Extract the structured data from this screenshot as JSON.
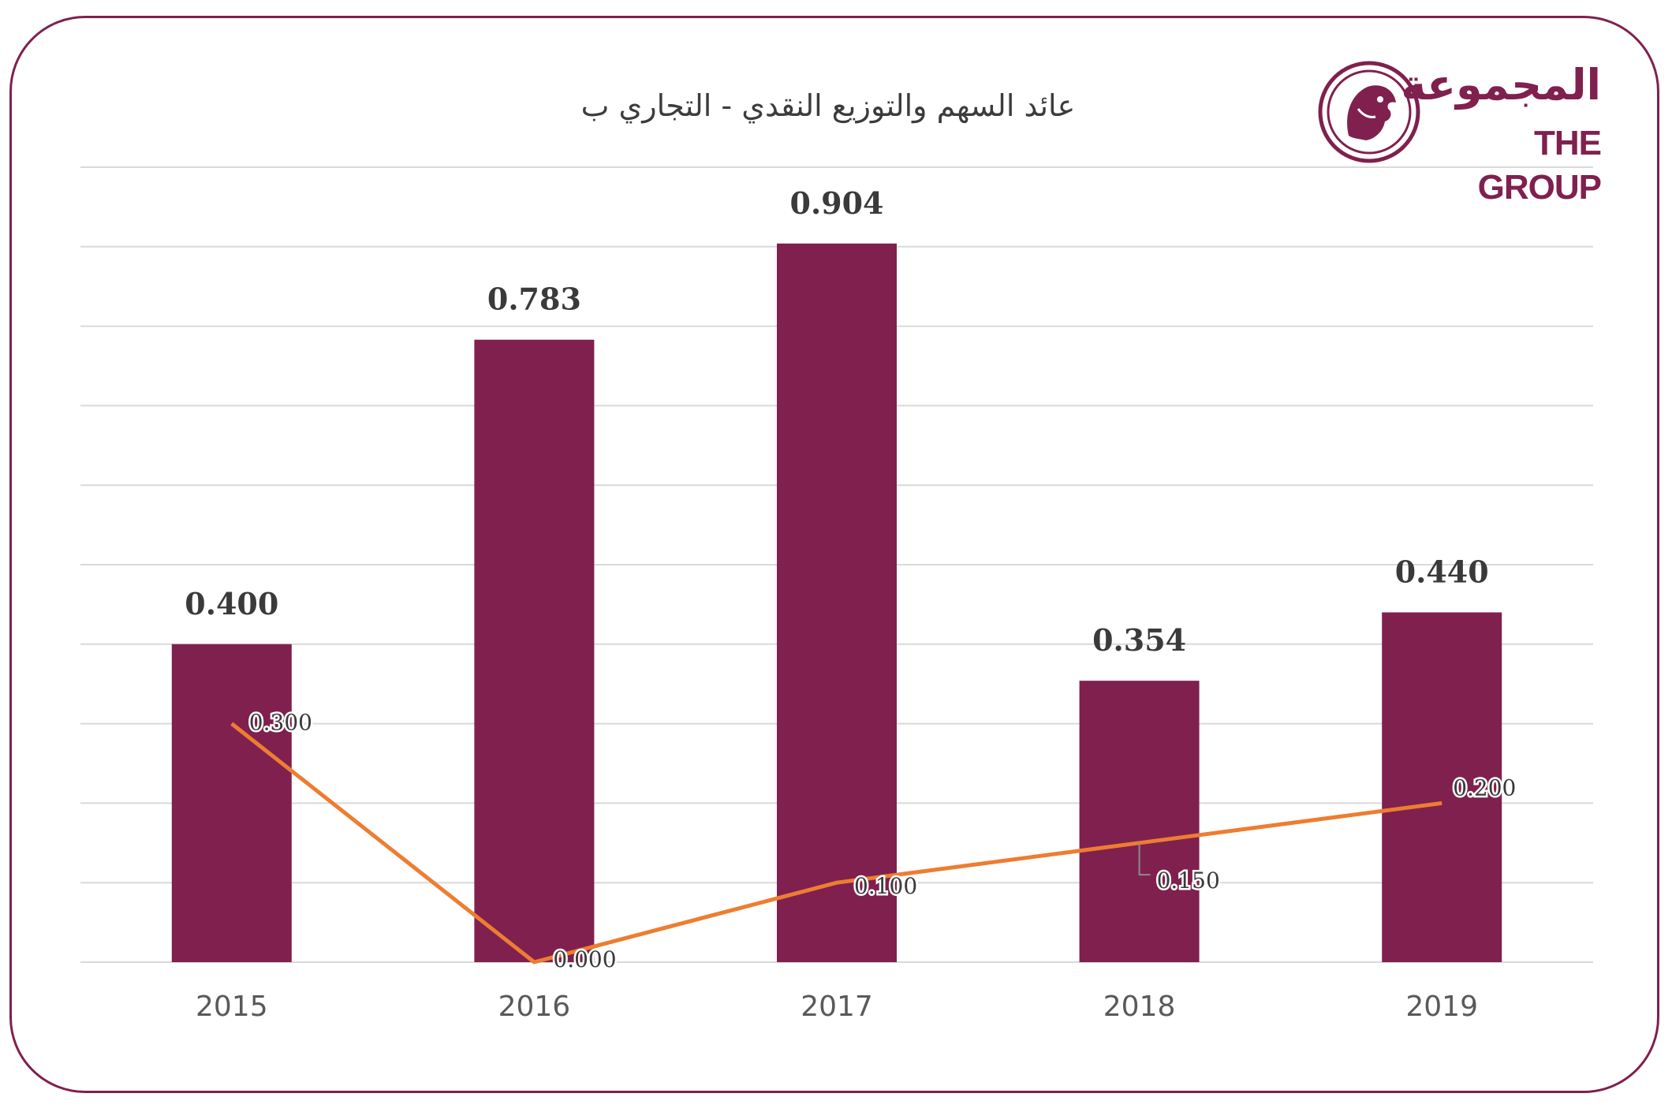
{
  "title": "عائد السهم والتوزيع النقدي  - التجاري ب",
  "logo": {
    "arabic": "المجموعة",
    "english": "THE GROUP"
  },
  "colors": {
    "bar": "#80204f",
    "line": "#ed7d31",
    "frame": "#80204f",
    "grid": "#d9d9d9"
  },
  "chart_data": {
    "type": "bar",
    "categories": [
      "2015",
      "2016",
      "2017",
      "2018",
      "2019"
    ],
    "series": [
      {
        "type": "bar",
        "values": [
          0.4,
          0.783,
          0.904,
          0.354,
          0.44
        ],
        "labels": [
          "0.400",
          "0.783",
          "0.904",
          "0.354",
          "0.440"
        ]
      },
      {
        "type": "line",
        "values": [
          0.3,
          0.0,
          0.1,
          0.15,
          0.2
        ],
        "labels": [
          "0.300",
          "0.000",
          "0.100",
          "0.150",
          "0.200"
        ]
      }
    ],
    "ylim": [
      0,
      1.0
    ],
    "grid": true,
    "legend": "none"
  }
}
